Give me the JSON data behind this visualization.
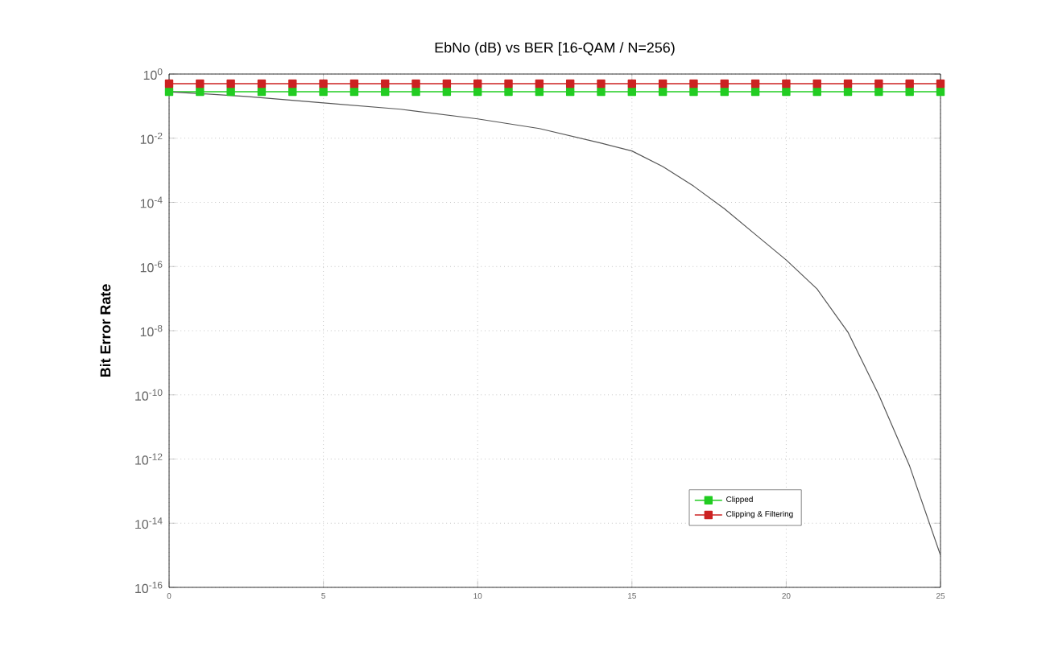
{
  "chart_data": {
    "type": "line",
    "title": "EbNo (dB) vs BER [16-QAM / N=256)",
    "ylabel": "Bit Error Rate",
    "log": "y",
    "x": [
      0,
      1,
      2,
      3,
      4,
      5,
      6,
      7,
      8,
      9,
      10,
      11,
      12,
      13,
      14,
      15,
      16,
      17,
      18,
      19,
      20,
      21,
      22,
      23,
      24,
      25
    ],
    "series": [
      {
        "name": "Clipped",
        "color": "#22cc22",
        "marker": "square",
        "values": [
          0.28,
          0.28,
          0.28,
          0.28,
          0.28,
          0.28,
          0.28,
          0.28,
          0.28,
          0.28,
          0.28,
          0.28,
          0.28,
          0.28,
          0.28,
          0.28,
          0.28,
          0.28,
          0.28,
          0.28,
          0.28,
          0.28,
          0.28,
          0.28,
          0.28,
          0.28
        ]
      },
      {
        "name": "Clipping & Filtering",
        "color": "#cc2222",
        "marker": "square",
        "values": [
          0.5,
          0.5,
          0.5,
          0.5,
          0.5,
          0.5,
          0.5,
          0.5,
          0.5,
          0.5,
          0.5,
          0.5,
          0.5,
          0.5,
          0.5,
          0.5,
          0.5,
          0.5,
          0.5,
          0.5,
          0.5,
          0.5,
          0.5,
          0.5,
          0.5,
          0.5
        ]
      },
      {
        "color": "#555555",
        "marker": "none",
        "x": [
          0,
          2.5,
          5,
          7.5,
          10,
          12,
          14,
          15,
          16,
          17,
          18,
          19,
          20,
          21,
          22,
          23,
          24,
          25
        ],
        "values": [
          0.28,
          0.2,
          0.126,
          0.08,
          0.04,
          0.02,
          0.007,
          0.004,
          0.0013,
          0.00032,
          6.3e-05,
          1e-05,
          1.6e-06,
          2e-07,
          9e-09,
          1e-10,
          6e-13,
          1e-15
        ]
      }
    ],
    "xlim": [
      0,
      25
    ],
    "xticks": [
      0,
      5,
      10,
      15,
      20,
      25
    ],
    "ylim": [
      1e-16,
      1
    ],
    "yticks": [
      {
        "value": 1,
        "label": "10$^{0}$"
      },
      {
        "value": 0.01,
        "label": "10$^{-2}$"
      },
      {
        "value": 0.0001,
        "label": "10$^{-4}$"
      },
      {
        "value": 1e-06,
        "label": "10$^{-6}$"
      },
      {
        "value": 1e-08,
        "label": "10$^{-8}$"
      },
      {
        "value": 1e-10,
        "label": "10$^{-10}$"
      },
      {
        "value": 1e-12,
        "label": "10$^{-12}$"
      },
      {
        "value": 1e-14,
        "label": "10$^{-14}$"
      },
      {
        "value": 1e-16,
        "label": "10$^{-16}$"
      }
    ],
    "grid": true,
    "legend": "bottom right"
  }
}
